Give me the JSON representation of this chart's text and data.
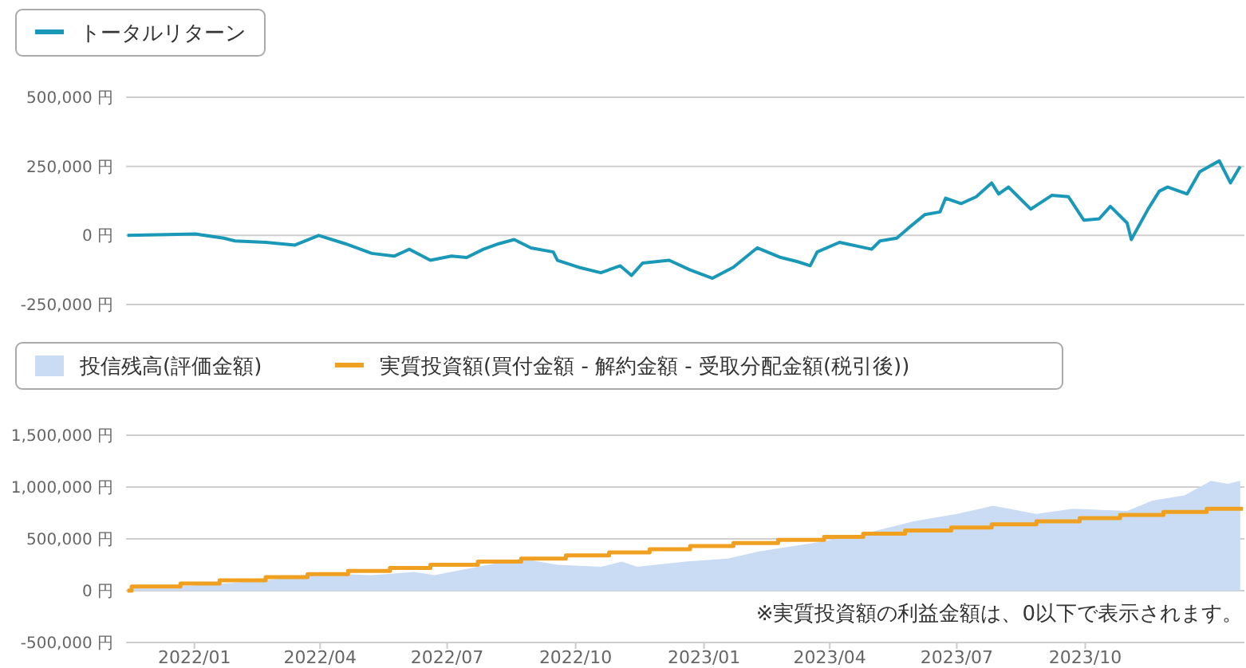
{
  "chart_data": [
    {
      "type": "line",
      "xlim": [
        "2021-11-13",
        "2024-01-23"
      ],
      "ylim": [
        -250000,
        500000
      ],
      "yticks": [
        {
          "value": -250000,
          "label": "-250,000 円"
        },
        {
          "value": 0,
          "label": "0 円"
        },
        {
          "value": 250000,
          "label": "250,000 円"
        },
        {
          "value": 500000,
          "label": "500,000 円"
        }
      ],
      "tick_labels": "y",
      "grid": "y",
      "legend": "top left",
      "series": [
        {
          "name": "トータルリターン",
          "color": "#1a98b8",
          "x": [
            "2021-11-14",
            "2022-01-02",
            "2022-01-22",
            "2022-01-30",
            "2022-02-21",
            "2022-03-14",
            "2022-03-31",
            "2022-04-19",
            "2022-05-08",
            "2022-05-24",
            "2022-06-04",
            "2022-06-19",
            "2022-07-04",
            "2022-07-15",
            "2022-07-27",
            "2022-08-07",
            "2022-08-18",
            "2022-08-30",
            "2022-09-15",
            "2022-09-18",
            "2022-10-03",
            "2022-10-19",
            "2022-11-02",
            "2022-11-10",
            "2022-11-18",
            "2022-12-07",
            "2022-12-22",
            "2023-01-07",
            "2023-01-22",
            "2023-02-08",
            "2023-02-25",
            "2023-03-09",
            "2023-03-18",
            "2023-03-23",
            "2023-04-08",
            "2023-05-01",
            "2023-05-07",
            "2023-05-19",
            "2023-05-27",
            "2023-06-08",
            "2023-06-19",
            "2023-06-23",
            "2023-07-04",
            "2023-07-15",
            "2023-07-26",
            "2023-07-31",
            "2023-08-07",
            "2023-08-23",
            "2023-09-07",
            "2023-09-19",
            "2023-09-30",
            "2023-10-11",
            "2023-10-19",
            "2023-10-31",
            "2023-11-03",
            "2023-11-15",
            "2023-11-23",
            "2023-11-29",
            "2023-12-13",
            "2023-12-22",
            "2024-01-05",
            "2024-01-13",
            "2024-01-20"
          ],
          "values": [
            0,
            5000,
            -10000,
            -20000,
            -25000,
            -35000,
            0,
            -30000,
            -65000,
            -75000,
            -50000,
            -90000,
            -75000,
            -80000,
            -50000,
            -30000,
            -15000,
            -45000,
            -60000,
            -90000,
            -115000,
            -135000,
            -110000,
            -145000,
            -100000,
            -90000,
            -125000,
            -155000,
            -115000,
            -45000,
            -80000,
            -95000,
            -110000,
            -60000,
            -25000,
            -50000,
            -20000,
            -10000,
            25000,
            75000,
            85000,
            135000,
            115000,
            140000,
            190000,
            150000,
            175000,
            95000,
            145000,
            140000,
            55000,
            60000,
            105000,
            45000,
            -15000,
            95000,
            160000,
            175000,
            150000,
            230000,
            270000,
            190000,
            250000
          ]
        }
      ]
    },
    {
      "type": "area",
      "xlim": [
        "2021-11-13",
        "2024-01-23"
      ],
      "ylim": [
        -500000,
        1500000
      ],
      "yticks": [
        {
          "value": -500000,
          "label": "-500,000 円"
        },
        {
          "value": 0,
          "label": "0 円"
        },
        {
          "value": 500000,
          "label": "500,000 円"
        },
        {
          "value": 1000000,
          "label": "1,000,000 円"
        },
        {
          "value": 1500000,
          "label": "1,500,000 円"
        }
      ],
      "xticks": [
        {
          "value": "2022-01-01",
          "label": "2022/01"
        },
        {
          "value": "2022-04-01",
          "label": "2022/04"
        },
        {
          "value": "2022-07-01",
          "label": "2022/07"
        },
        {
          "value": "2022-10-01",
          "label": "2022/10"
        },
        {
          "value": "2023-01-01",
          "label": "2023/01"
        },
        {
          "value": "2023-04-01",
          "label": "2023/04"
        },
        {
          "value": "2023-07-01",
          "label": "2023/07"
        },
        {
          "value": "2023-10-01",
          "label": "2023/10"
        }
      ],
      "grid": "y",
      "legend": "top left",
      "annotations": [
        "※実質投資額の利益金額は、0以下で表示されます。"
      ],
      "series": [
        {
          "name": "投信残高(評価金額)",
          "type": "area",
          "color": "#c9dcf3",
          "x": [
            "2021-11-14",
            "2022-01-13",
            "2022-02-21",
            "2022-03-31",
            "2022-05-08",
            "2022-06-07",
            "2022-06-22",
            "2022-07-23",
            "2022-08-23",
            "2022-09-18",
            "2022-10-19",
            "2022-11-03",
            "2022-11-14",
            "2022-12-19",
            "2023-01-18",
            "2023-02-10",
            "2023-03-20",
            "2023-04-23",
            "2023-05-31",
            "2023-07-01",
            "2023-07-27",
            "2023-08-27",
            "2023-09-22",
            "2023-10-31",
            "2023-11-18",
            "2023-12-11",
            "2023-12-30",
            "2024-01-11",
            "2024-01-20"
          ],
          "values": [
            20000,
            60000,
            100000,
            170000,
            150000,
            180000,
            150000,
            230000,
            310000,
            250000,
            230000,
            280000,
            230000,
            280000,
            310000,
            380000,
            460000,
            540000,
            670000,
            740000,
            820000,
            740000,
            790000,
            770000,
            870000,
            920000,
            1060000,
            1030000,
            1060000
          ]
        },
        {
          "name": "実質投資額(買付金額 - 解約金額 - 受取分配金額(税引後))",
          "type": "step",
          "color": "#f0a020",
          "x": [
            "2021-11-14",
            "2021-11-17",
            "2021-12-22",
            "2022-01-19",
            "2022-02-21",
            "2022-03-23",
            "2022-04-21",
            "2022-05-21",
            "2022-06-19",
            "2022-07-23",
            "2022-08-23",
            "2022-09-24",
            "2022-10-25",
            "2022-11-23",
            "2022-12-22",
            "2023-01-22",
            "2023-02-23",
            "2023-03-28",
            "2023-04-25",
            "2023-05-25",
            "2023-06-27",
            "2023-07-26",
            "2023-08-27",
            "2023-09-27",
            "2023-10-26",
            "2023-11-26",
            "2023-12-27",
            "2024-01-22"
          ],
          "values": [
            0,
            40000,
            70000,
            100000,
            130000,
            160000,
            190000,
            220000,
            250000,
            280000,
            310000,
            340000,
            370000,
            400000,
            430000,
            460000,
            490000,
            520000,
            550000,
            580000,
            610000,
            640000,
            670000,
            700000,
            730000,
            760000,
            790000,
            790000
          ]
        }
      ]
    }
  ]
}
